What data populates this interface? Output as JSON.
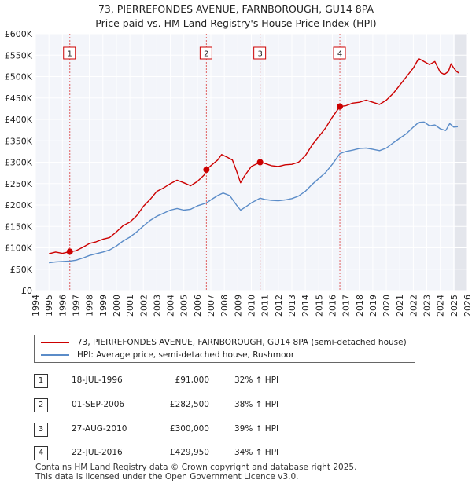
{
  "header": {
    "title_line1": "73, PIERREFONDES AVENUE, FARNBOROUGH, GU14 8PA",
    "title_line2": "Price paid vs. HM Land Registry's House Price Index (HPI)"
  },
  "chart_data": {
    "type": "line",
    "title": "73, PIERREFONDES AVENUE, FARNBOROUGH, GU14 8PA — Price paid vs. HM Land Registry's House Price Index (HPI)",
    "xlabel": "",
    "ylabel": "",
    "xlim": [
      1994,
      2026
    ],
    "ylim": [
      0,
      600000
    ],
    "x_ticks": [
      "1994",
      "1995",
      "1996",
      "1997",
      "1998",
      "1999",
      "2000",
      "2001",
      "2002",
      "2003",
      "2004",
      "2005",
      "2006",
      "2007",
      "2008",
      "2009",
      "2010",
      "2011",
      "2012",
      "2013",
      "2014",
      "2015",
      "2016",
      "2017",
      "2018",
      "2019",
      "2020",
      "2021",
      "2022",
      "2023",
      "2024",
      "2025",
      "2026"
    ],
    "y_ticks": [
      {
        "value": 0,
        "label": "£0"
      },
      {
        "value": 50000,
        "label": "£50K"
      },
      {
        "value": 100000,
        "label": "£100K"
      },
      {
        "value": 150000,
        "label": "£150K"
      },
      {
        "value": 200000,
        "label": "£200K"
      },
      {
        "value": 250000,
        "label": "£250K"
      },
      {
        "value": 300000,
        "label": "£300K"
      },
      {
        "value": 350000,
        "label": "£350K"
      },
      {
        "value": 400000,
        "label": "£400K"
      },
      {
        "value": 450000,
        "label": "£450K"
      },
      {
        "value": 500000,
        "label": "£500K"
      },
      {
        "value": 550000,
        "label": "£550K"
      },
      {
        "value": 600000,
        "label": "£600K"
      }
    ],
    "grid": true,
    "series": [
      {
        "name": "73, PIERREFONDES AVENUE, FARNBOROUGH, GU14 8PA (semi-detached house)",
        "color": "#cc0000",
        "points": [
          [
            1995.0,
            86000
          ],
          [
            1995.5,
            90000
          ],
          [
            1996.0,
            87000
          ],
          [
            1996.55,
            91000
          ],
          [
            1997.0,
            93000
          ],
          [
            1997.5,
            101000
          ],
          [
            1998.0,
            110000
          ],
          [
            1998.5,
            114000
          ],
          [
            1999.0,
            120000
          ],
          [
            1999.5,
            124000
          ],
          [
            2000.0,
            137000
          ],
          [
            2000.5,
            152000
          ],
          [
            2001.0,
            160000
          ],
          [
            2001.5,
            175000
          ],
          [
            2002.0,
            197000
          ],
          [
            2002.5,
            213000
          ],
          [
            2003.0,
            232000
          ],
          [
            2003.5,
            240000
          ],
          [
            2004.0,
            250000
          ],
          [
            2004.5,
            258000
          ],
          [
            2005.0,
            252000
          ],
          [
            2005.5,
            245000
          ],
          [
            2006.0,
            255000
          ],
          [
            2006.5,
            270000
          ],
          [
            2006.67,
            282500
          ],
          [
            2007.0,
            292000
          ],
          [
            2007.5,
            305000
          ],
          [
            2007.8,
            318000
          ],
          [
            2008.2,
            312000
          ],
          [
            2008.6,
            305000
          ],
          [
            2008.9,
            280000
          ],
          [
            2009.2,
            252000
          ],
          [
            2009.5,
            268000
          ],
          [
            2010.0,
            290000
          ],
          [
            2010.65,
            300000
          ],
          [
            2011.0,
            297000
          ],
          [
            2011.5,
            292000
          ],
          [
            2012.0,
            290000
          ],
          [
            2012.5,
            294000
          ],
          [
            2013.0,
            295000
          ],
          [
            2013.5,
            300000
          ],
          [
            2014.0,
            315000
          ],
          [
            2014.5,
            340000
          ],
          [
            2015.0,
            360000
          ],
          [
            2015.5,
            380000
          ],
          [
            2016.0,
            405000
          ],
          [
            2016.56,
            429950
          ],
          [
            2017.0,
            432000
          ],
          [
            2017.5,
            438000
          ],
          [
            2018.0,
            440000
          ],
          [
            2018.5,
            445000
          ],
          [
            2019.0,
            440000
          ],
          [
            2019.5,
            435000
          ],
          [
            2020.0,
            445000
          ],
          [
            2020.5,
            460000
          ],
          [
            2021.0,
            480000
          ],
          [
            2021.5,
            500000
          ],
          [
            2022.0,
            520000
          ],
          [
            2022.4,
            542000
          ],
          [
            2022.8,
            535000
          ],
          [
            2023.2,
            528000
          ],
          [
            2023.6,
            535000
          ],
          [
            2024.0,
            510000
          ],
          [
            2024.3,
            505000
          ],
          [
            2024.6,
            512000
          ],
          [
            2024.8,
            530000
          ],
          [
            2025.0,
            520000
          ],
          [
            2025.2,
            512000
          ],
          [
            2025.4,
            508000
          ]
        ]
      },
      {
        "name": "HPI: Average price, semi-detached house, Rushmoor",
        "color": "#5b8cc8",
        "points": [
          [
            1995.0,
            65000
          ],
          [
            1995.5,
            67000
          ],
          [
            1996.0,
            68000
          ],
          [
            1996.55,
            69000
          ],
          [
            1997.0,
            71000
          ],
          [
            1997.5,
            76000
          ],
          [
            1998.0,
            82000
          ],
          [
            1998.5,
            86000
          ],
          [
            1999.0,
            90000
          ],
          [
            1999.5,
            95000
          ],
          [
            2000.0,
            104000
          ],
          [
            2000.5,
            116000
          ],
          [
            2001.0,
            125000
          ],
          [
            2001.5,
            137000
          ],
          [
            2002.0,
            151000
          ],
          [
            2002.5,
            164000
          ],
          [
            2003.0,
            174000
          ],
          [
            2003.5,
            181000
          ],
          [
            2004.0,
            188000
          ],
          [
            2004.5,
            192000
          ],
          [
            2005.0,
            188000
          ],
          [
            2005.5,
            190000
          ],
          [
            2006.0,
            198000
          ],
          [
            2006.67,
            205000
          ],
          [
            2007.0,
            212000
          ],
          [
            2007.5,
            222000
          ],
          [
            2007.9,
            228000
          ],
          [
            2008.4,
            222000
          ],
          [
            2008.9,
            200000
          ],
          [
            2009.2,
            188000
          ],
          [
            2009.6,
            196000
          ],
          [
            2010.0,
            205000
          ],
          [
            2010.65,
            216000
          ],
          [
            2011.0,
            213000
          ],
          [
            2011.5,
            211000
          ],
          [
            2012.0,
            210000
          ],
          [
            2012.5,
            212000
          ],
          [
            2013.0,
            215000
          ],
          [
            2013.5,
            221000
          ],
          [
            2014.0,
            232000
          ],
          [
            2014.5,
            248000
          ],
          [
            2015.0,
            262000
          ],
          [
            2015.5,
            276000
          ],
          [
            2016.0,
            295000
          ],
          [
            2016.56,
            320000
          ],
          [
            2017.0,
            325000
          ],
          [
            2017.5,
            328000
          ],
          [
            2018.0,
            332000
          ],
          [
            2018.5,
            333000
          ],
          [
            2019.0,
            330000
          ],
          [
            2019.5,
            327000
          ],
          [
            2020.0,
            333000
          ],
          [
            2020.5,
            345000
          ],
          [
            2021.0,
            356000
          ],
          [
            2021.5,
            367000
          ],
          [
            2022.0,
            382000
          ],
          [
            2022.4,
            393000
          ],
          [
            2022.8,
            394000
          ],
          [
            2023.2,
            385000
          ],
          [
            2023.6,
            387000
          ],
          [
            2024.0,
            378000
          ],
          [
            2024.4,
            374000
          ],
          [
            2024.7,
            390000
          ],
          [
            2025.0,
            382000
          ],
          [
            2025.3,
            383000
          ]
        ]
      }
    ],
    "sales": [
      {
        "label": "1",
        "x": 1996.55,
        "price": 91000
      },
      {
        "label": "2",
        "x": 2006.67,
        "price": 282500
      },
      {
        "label": "3",
        "x": 2010.65,
        "price": 300000
      },
      {
        "label": "4",
        "x": 2016.56,
        "price": 429950
      }
    ]
  },
  "legend": {
    "property_label": "73, PIERREFONDES AVENUE, FARNBOROUGH, GU14 8PA (semi-detached house)",
    "hpi_label": "HPI: Average price, semi-detached house, Rushmoor",
    "property_color": "#cc0000",
    "hpi_color": "#5b8cc8"
  },
  "transactions": [
    {
      "num": "1",
      "date": "18-JUL-1996",
      "price": "£91,000",
      "hpi": "32% ↑ HPI"
    },
    {
      "num": "2",
      "date": "01-SEP-2006",
      "price": "£282,500",
      "hpi": "38% ↑ HPI"
    },
    {
      "num": "3",
      "date": "27-AUG-2010",
      "price": "£300,000",
      "hpi": "39% ↑ HPI"
    },
    {
      "num": "4",
      "date": "22-JUL-2016",
      "price": "£429,950",
      "hpi": "34% ↑ HPI"
    }
  ],
  "footer": {
    "line1": "Contains HM Land Registry data © Crown copyright and database right 2025.",
    "line2": "This data is licensed under the Open Government Licence v3.0."
  }
}
